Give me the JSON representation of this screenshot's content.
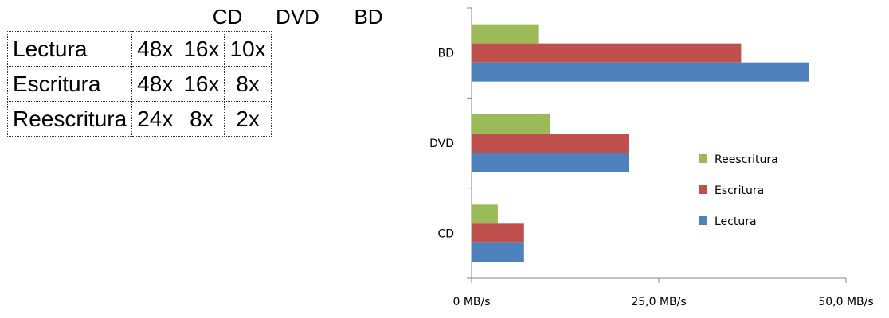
{
  "table": {
    "columns": [
      "CD",
      "DVD",
      "BD"
    ],
    "rows": [
      {
        "label": "Lectura",
        "values": [
          "48x",
          "16x",
          "10x"
        ]
      },
      {
        "label": "Escritura",
        "values": [
          "48x",
          "16x",
          "8x"
        ]
      },
      {
        "label": "Reescritura",
        "values": [
          "24x",
          "8x",
          "2x"
        ]
      }
    ]
  },
  "chart_data": {
    "type": "bar",
    "orientation": "horizontal",
    "categories": [
      "CD",
      "DVD",
      "BD"
    ],
    "series": [
      {
        "name": "Lectura",
        "color": "#4f81bd",
        "values": [
          7.0,
          21.0,
          45.0
        ]
      },
      {
        "name": "Escritura",
        "color": "#c0504d",
        "values": [
          7.0,
          21.0,
          36.0
        ]
      },
      {
        "name": "Reescritura",
        "color": "#9bbb59",
        "values": [
          3.5,
          10.5,
          9.0
        ]
      }
    ],
    "xlim": [
      0,
      50
    ],
    "xticks": [
      0,
      25,
      50
    ],
    "xtick_labels": [
      "0 MB/s",
      "25,0 MB/s",
      "50,0 MB/s"
    ],
    "xlabel": "",
    "ylabel": "",
    "title": "",
    "legend": {
      "position": "right",
      "order": [
        "Reescritura",
        "Escritura",
        "Lectura"
      ]
    },
    "grid": false
  }
}
